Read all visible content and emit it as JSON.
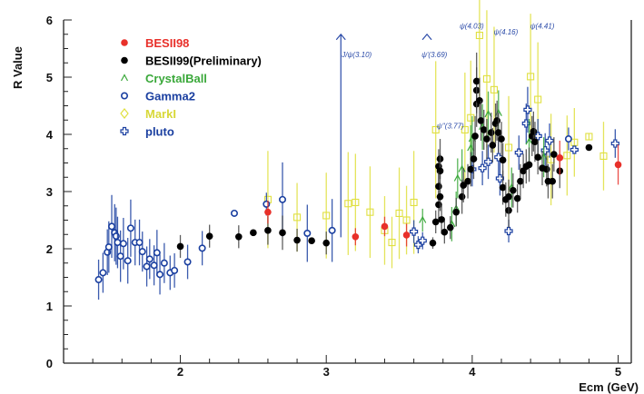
{
  "chart_data": {
    "type": "scatter",
    "title": "",
    "xlabel": "Ecm (GeV)",
    "ylabel": "R Value",
    "xlim": [
      1.2,
      5.09
    ],
    "ylim": [
      0,
      6
    ],
    "xticks": [
      "2",
      "3",
      "4",
      "5"
    ],
    "yticks": [
      "0",
      "1",
      "2",
      "3",
      "4",
      "5",
      "6"
    ],
    "grid": false,
    "legend_position": "top-left",
    "series": [
      {
        "name": "BESII98",
        "marker": "filled-circle",
        "color": "#e8302a",
        "points": [
          [
            2.6,
            2.64,
            0.2
          ],
          [
            3.2,
            2.21,
            0.15
          ],
          [
            3.4,
            2.39,
            0.17
          ],
          [
            3.55,
            2.24,
            0.2
          ],
          [
            4.6,
            3.59,
            0.3
          ],
          [
            5.0,
            3.47,
            0.35
          ]
        ]
      },
      {
        "name": "BESII99(Preliminary)",
        "marker": "filled-circle",
        "color": "#000000",
        "points": [
          [
            2.0,
            2.04,
            0.2
          ],
          [
            2.2,
            2.22,
            0.2
          ],
          [
            2.4,
            2.21,
            0.2
          ],
          [
            2.5,
            2.28,
            0.05
          ],
          [
            2.6,
            2.32,
            0.25
          ],
          [
            2.7,
            2.28,
            0.3
          ],
          [
            2.8,
            2.15,
            0.2
          ],
          [
            2.9,
            2.14,
            0.05
          ],
          [
            3.0,
            2.1,
            0.2
          ],
          [
            3.73,
            2.1,
            0.1
          ],
          [
            3.75,
            2.47,
            0.2
          ],
          [
            3.77,
            2.77,
            0.25
          ],
          [
            3.77,
            3.44,
            0.3
          ],
          [
            3.78,
            3.57,
            0.35
          ],
          [
            3.78,
            3.36,
            0.3
          ],
          [
            3.77,
            3.09,
            0.25
          ],
          [
            3.78,
            2.91,
            0.25
          ],
          [
            3.79,
            2.51,
            0.25
          ],
          [
            3.81,
            2.29,
            0.2
          ],
          [
            3.85,
            2.37,
            0.2
          ],
          [
            3.89,
            2.64,
            0.25
          ],
          [
            3.93,
            2.91,
            0.3
          ],
          [
            3.94,
            3.11,
            0.3
          ],
          [
            3.97,
            3.18,
            0.3
          ],
          [
            3.99,
            3.39,
            0.3
          ],
          [
            4.01,
            3.57,
            0.35
          ],
          [
            4.02,
            3.97,
            0.35
          ],
          [
            4.03,
            4.53,
            0.4
          ],
          [
            4.03,
            4.77,
            0.4
          ],
          [
            4.03,
            4.93,
            0.5
          ],
          [
            4.05,
            4.59,
            0.4
          ],
          [
            4.06,
            4.24,
            0.35
          ],
          [
            4.08,
            4.08,
            0.35
          ],
          [
            4.1,
            3.92,
            0.35
          ],
          [
            4.13,
            4.03,
            0.35
          ],
          [
            4.14,
            3.81,
            0.3
          ],
          [
            4.16,
            4.19,
            0.35
          ],
          [
            4.17,
            4.24,
            0.35
          ],
          [
            4.18,
            4.03,
            0.35
          ],
          [
            4.2,
            3.92,
            0.3
          ],
          [
            4.21,
            3.55,
            0.3
          ],
          [
            4.21,
            3.07,
            0.3
          ],
          [
            4.23,
            2.86,
            0.3
          ],
          [
            4.25,
            2.67,
            0.3
          ],
          [
            4.25,
            2.91,
            0.3
          ],
          [
            4.28,
            3.02,
            0.3
          ],
          [
            4.31,
            2.88,
            0.25
          ],
          [
            4.33,
            3.18,
            0.3
          ],
          [
            4.35,
            3.36,
            0.3
          ],
          [
            4.37,
            3.44,
            0.3
          ],
          [
            4.39,
            3.47,
            0.3
          ],
          [
            4.41,
            3.97,
            0.35
          ],
          [
            4.42,
            4.05,
            0.35
          ],
          [
            4.43,
            3.87,
            0.35
          ],
          [
            4.45,
            3.6,
            0.3
          ],
          [
            4.48,
            3.41,
            0.3
          ],
          [
            4.51,
            3.39,
            0.3
          ],
          [
            4.52,
            3.18,
            0.3
          ],
          [
            4.55,
            3.18,
            0.3
          ],
          [
            4.56,
            3.65,
            0.3
          ],
          [
            4.6,
            3.36,
            0.3
          ],
          [
            4.8,
            3.77,
            0.05
          ]
        ]
      },
      {
        "name": "CrystalBall",
        "marker": "open-triangle",
        "color": "#3aa83a",
        "points": [
          [
            3.66,
            2.5,
            0.2
          ],
          [
            3.86,
            2.43,
            0.3
          ],
          [
            3.89,
            2.7,
            0.3
          ],
          [
            3.9,
            3.23,
            0.35
          ],
          [
            3.93,
            3.39,
            0.35
          ],
          [
            3.99,
            3.76,
            0.4
          ],
          [
            4.0,
            3.92,
            0.4
          ],
          [
            4.07,
            4.13,
            0.4
          ],
          [
            4.11,
            4.35,
            0.4
          ],
          [
            4.18,
            4.37,
            0.4
          ],
          [
            4.27,
            3.07,
            0.35
          ],
          [
            4.39,
            3.87,
            0.4
          ],
          [
            4.49,
            3.6,
            0.35
          ]
        ]
      },
      {
        "name": "Gamma2",
        "marker": "open-circle",
        "color": "#1a3fa0",
        "points": [
          [
            1.44,
            1.46,
            0.35
          ],
          [
            1.47,
            1.58,
            0.35
          ],
          [
            1.5,
            1.94,
            0.4
          ],
          [
            1.51,
            2.03,
            0.45
          ],
          [
            1.53,
            2.39,
            0.55
          ],
          [
            1.55,
            2.28,
            0.5
          ],
          [
            1.56,
            2.22,
            0.5
          ],
          [
            1.57,
            2.11,
            0.45
          ],
          [
            1.59,
            1.87,
            0.45
          ],
          [
            1.61,
            2.09,
            0.45
          ],
          [
            1.64,
            1.79,
            0.4
          ],
          [
            1.66,
            2.36,
            0.5
          ],
          [
            1.69,
            2.11,
            0.4
          ],
          [
            1.72,
            2.11,
            0.4
          ],
          [
            1.74,
            1.95,
            0.35
          ],
          [
            1.77,
            1.69,
            0.35
          ],
          [
            1.79,
            1.82,
            0.35
          ],
          [
            1.82,
            1.71,
            0.35
          ],
          [
            1.84,
            1.93,
            0.4
          ],
          [
            1.86,
            1.55,
            0.35
          ],
          [
            1.89,
            1.75,
            0.35
          ],
          [
            1.93,
            1.58,
            0.3
          ],
          [
            1.96,
            1.62,
            0.3
          ],
          [
            2.05,
            1.77,
            0.3
          ],
          [
            2.15,
            2.01,
            0.3
          ],
          [
            2.37,
            2.62,
            0.05
          ],
          [
            2.59,
            2.78,
            0.2
          ],
          [
            2.7,
            2.86,
            0.65
          ],
          [
            2.87,
            2.27,
            0.5
          ],
          [
            3.04,
            2.32,
            0.55
          ],
          [
            4.66,
            3.92,
            0.2
          ]
        ]
      },
      {
        "name": "MarkI",
        "marker": "open-diamond",
        "color": "#e0e040",
        "points": [
          [
            2.6,
            2.86,
            0.85
          ],
          [
            2.8,
            2.55,
            0.6
          ],
          [
            3.0,
            2.58,
            0.75
          ],
          [
            3.15,
            2.79,
            0.9
          ],
          [
            3.2,
            2.81,
            0.85
          ],
          [
            3.3,
            2.64,
            0.8
          ],
          [
            3.4,
            2.32,
            0.6
          ],
          [
            3.45,
            2.11,
            0.45
          ],
          [
            3.5,
            2.62,
            0.8
          ],
          [
            3.55,
            2.5,
            0.6
          ],
          [
            3.6,
            2.81,
            0.9
          ],
          [
            3.75,
            4.08,
            1.2
          ],
          [
            3.95,
            4.08,
            1.0
          ],
          [
            3.99,
            4.29,
            1.0
          ],
          [
            4.05,
            5.73,
            1.3
          ],
          [
            4.1,
            4.97,
            1.2
          ],
          [
            4.15,
            4.78,
            1.1
          ],
          [
            4.25,
            3.77,
            0.9
          ],
          [
            4.4,
            5.01,
            1.1
          ],
          [
            4.45,
            4.61,
            1.0
          ],
          [
            4.54,
            3.56,
            0.8
          ],
          [
            4.65,
            3.63,
            0.7
          ],
          [
            4.7,
            3.86,
            0.6
          ],
          [
            4.8,
            3.96,
            0.05
          ],
          [
            4.9,
            3.62,
            0.6
          ]
        ]
      },
      {
        "name": "pluto",
        "marker": "open-cross",
        "color": "#1a3fa0",
        "points": [
          [
            3.6,
            2.3,
            0.2
          ],
          [
            3.63,
            2.07,
            0.15
          ],
          [
            3.66,
            2.14,
            0.15
          ],
          [
            4.0,
            3.39,
            0.3
          ],
          [
            4.07,
            3.41,
            0.3
          ],
          [
            4.11,
            3.52,
            0.3
          ],
          [
            4.18,
            3.6,
            0.3
          ],
          [
            4.19,
            3.23,
            0.3
          ],
          [
            4.25,
            2.31,
            0.2
          ],
          [
            4.32,
            3.68,
            0.3
          ],
          [
            4.37,
            4.19,
            0.35
          ],
          [
            4.38,
            4.43,
            0.4
          ],
          [
            4.45,
            3.97,
            0.3
          ],
          [
            4.5,
            3.72,
            0.3
          ],
          [
            4.53,
            3.89,
            0.3
          ],
          [
            4.7,
            3.73,
            0.05
          ],
          [
            4.98,
            3.84,
            0.25
          ]
        ]
      }
    ],
    "annotations": [
      {
        "text": "J/ψ(3.10)",
        "x": 3.1,
        "y": 5.75,
        "arrow": true,
        "line_from": 2.2
      },
      {
        "text": "ψ'(3.69)",
        "x": 3.69,
        "y": 5.75,
        "arrow": true
      },
      {
        "text": "ψ''(3.77)",
        "x": 3.77,
        "y": 4.1
      },
      {
        "text": "ψ(4.03)",
        "x": 4.03,
        "y": 5.85
      },
      {
        "text": "ψ(4.16)",
        "x": 4.16,
        "y": 5.75
      },
      {
        "text": "ψ(4.41)",
        "x": 4.41,
        "y": 5.85
      }
    ]
  }
}
